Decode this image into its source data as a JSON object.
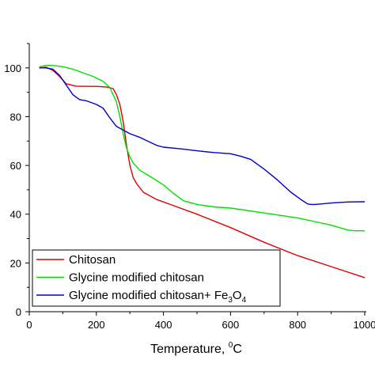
{
  "chart_data": {
    "type": "line",
    "title": "",
    "xlabel": "Temperature, ",
    "xlabel_unit": "C",
    "xlabel_superscript": "0",
    "ylabel": "",
    "xlim": [
      0,
      1000
    ],
    "ylim": [
      0,
      110
    ],
    "x_ticks": [
      0,
      200,
      400,
      600,
      800,
      1000
    ],
    "x_tick_labels": [
      "0",
      "200",
      "400",
      "600",
      "800",
      "1000"
    ],
    "y_ticks": [
      0,
      20,
      40,
      60,
      80,
      100
    ],
    "y_tick_labels": [
      "0",
      "20",
      "40",
      "60",
      "80",
      "100"
    ],
    "grid": false,
    "legend_position": "bottom-left",
    "legend": [
      {
        "series": 0,
        "text": "Chitosan"
      },
      {
        "series": 1,
        "text": "Glycine modified chitosan"
      },
      {
        "series": 2,
        "text": "Glycine modified chitosan+ Fe",
        "sub": "3",
        "mid": "O",
        "sub2": "4"
      }
    ],
    "series": [
      {
        "name": "Chitosan",
        "color": "#e00000",
        "x": [
          30,
          50,
          70,
          90,
          110,
          140,
          170,
          200,
          230,
          250,
          260,
          270,
          280,
          290,
          300,
          310,
          320,
          340,
          380,
          420,
          500,
          600,
          700,
          800,
          900,
          1000
        ],
        "y": [
          100,
          100.3,
          99,
          96.5,
          93.5,
          92.5,
          92.4,
          92.4,
          92.2,
          91.5,
          89,
          85,
          78,
          68,
          60,
          55,
          52.5,
          49,
          46,
          44,
          40,
          34.5,
          28.5,
          23,
          18.5,
          14
        ]
      },
      {
        "name": "Glycine modified chitosan",
        "color": "#00e000",
        "x": [
          30,
          50,
          70,
          100,
          130,
          160,
          190,
          220,
          240,
          260,
          270,
          280,
          290,
          300,
          310,
          330,
          360,
          400,
          430,
          460,
          500,
          550,
          600,
          700,
          800,
          850,
          900,
          950,
          970,
          1000
        ],
        "y": [
          100.5,
          101,
          101,
          100.5,
          99.5,
          98,
          96.5,
          94.5,
          92,
          86,
          80,
          73,
          67,
          63.5,
          61,
          58,
          55.5,
          52,
          48.5,
          45.5,
          44,
          43,
          42.5,
          40.5,
          38.5,
          37,
          35.5,
          33.5,
          33.2,
          33.2
        ]
      },
      {
        "name": "Glycine modified chitosan+ Fe3O4",
        "color": "#0000c8",
        "x": [
          30,
          50,
          70,
          90,
          110,
          130,
          150,
          170,
          200,
          220,
          240,
          260,
          280,
          300,
          330,
          360,
          380,
          400,
          450,
          500,
          550,
          600,
          630,
          660,
          700,
          740,
          780,
          810,
          830,
          840,
          850,
          870,
          900,
          950,
          1000
        ],
        "y": [
          100,
          100,
          99.5,
          97,
          93,
          89,
          87,
          86.5,
          85,
          83.5,
          79.5,
          76,
          74.5,
          73,
          71.5,
          69.5,
          68.2,
          67.5,
          66.8,
          66,
          65.3,
          64.8,
          63.8,
          62.5,
          58.5,
          54,
          49,
          46,
          44.2,
          44,
          44,
          44.2,
          44.6,
          45,
          45.1
        ]
      }
    ]
  }
}
